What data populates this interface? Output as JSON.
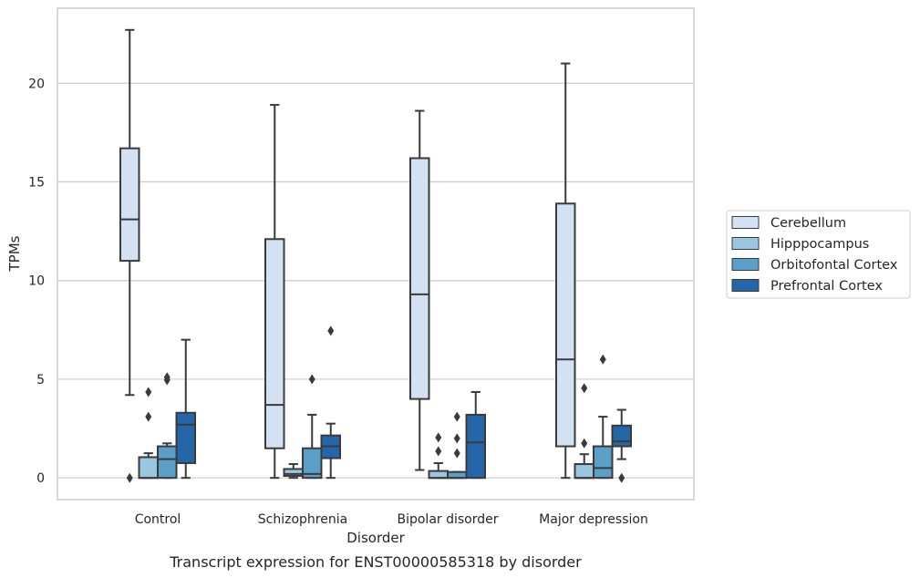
{
  "chart_data": {
    "type": "box",
    "caption": "Transcript expression for ENST00000585318 by disorder",
    "xlabel": "Disorder",
    "ylabel": "TPMs",
    "ylim": [
      -1.1,
      23.8
    ],
    "yticks": [
      0,
      5,
      10,
      15,
      20
    ],
    "grid": "horizontal",
    "legend_position": "right",
    "categories": [
      "Control",
      "Schizophrenia",
      "Bipolar disorder",
      "Major depression"
    ],
    "series": [
      {
        "name": "Cerebellum",
        "color": "#d2e2f2",
        "boxes": [
          {
            "whislo": 4.2,
            "q1": 11.0,
            "med": 13.1,
            "q3": 16.7,
            "whishi": 22.7,
            "fliers": [
              0.0
            ]
          },
          {
            "whislo": 0.0,
            "q1": 1.5,
            "med": 3.7,
            "q3": 12.1,
            "whishi": 18.9,
            "fliers": []
          },
          {
            "whislo": 0.4,
            "q1": 4.0,
            "med": 9.3,
            "q3": 16.2,
            "whishi": 18.6,
            "fliers": []
          },
          {
            "whislo": 0.0,
            "q1": 1.6,
            "med": 6.0,
            "q3": 13.9,
            "whishi": 21.0,
            "fliers": []
          }
        ]
      },
      {
        "name": "Hipppocampus",
        "color": "#9ac6e0",
        "boxes": [
          {
            "whislo": 0.0,
            "q1": 0.0,
            "med": 0.0,
            "q3": 1.05,
            "whishi": 1.25,
            "fliers": [
              3.1,
              4.35
            ]
          },
          {
            "whislo": 0.0,
            "q1": 0.1,
            "med": 0.2,
            "q3": 0.45,
            "whishi": 0.7,
            "fliers": []
          },
          {
            "whislo": 0.0,
            "q1": 0.0,
            "med": 0.0,
            "q3": 0.35,
            "whishi": 0.75,
            "fliers": [
              1.35,
              2.05
            ]
          },
          {
            "whislo": 0.0,
            "q1": 0.0,
            "med": 0.0,
            "q3": 0.7,
            "whishi": 1.2,
            "fliers": [
              1.75,
              4.55
            ]
          }
        ]
      },
      {
        "name": "Orbitofontal Cortex",
        "color": "#5b9fc9",
        "boxes": [
          {
            "whislo": 0.0,
            "q1": 0.0,
            "med": 0.95,
            "q3": 1.6,
            "whishi": 1.75,
            "fliers": [
              4.95,
              5.1
            ]
          },
          {
            "whislo": 0.0,
            "q1": 0.0,
            "med": 0.2,
            "q3": 1.5,
            "whishi": 3.2,
            "fliers": [
              5.0
            ]
          },
          {
            "whislo": 0.0,
            "q1": 0.0,
            "med": 0.0,
            "q3": 0.3,
            "whishi": 0.3,
            "fliers": [
              1.25,
              2.0,
              3.1
            ]
          },
          {
            "whislo": 0.0,
            "q1": 0.0,
            "med": 0.5,
            "q3": 1.6,
            "whishi": 3.1,
            "fliers": [
              6.0
            ]
          }
        ]
      },
      {
        "name": "Prefrontal Cortex",
        "color": "#2566a8",
        "boxes": [
          {
            "whislo": 0.0,
            "q1": 0.75,
            "med": 2.7,
            "q3": 3.3,
            "whishi": 7.0,
            "fliers": []
          },
          {
            "whislo": 0.0,
            "q1": 1.0,
            "med": 1.6,
            "q3": 2.15,
            "whishi": 2.75,
            "fliers": [
              7.45
            ]
          },
          {
            "whislo": 0.0,
            "q1": 0.0,
            "med": 1.8,
            "q3": 3.2,
            "whishi": 4.35,
            "fliers": []
          },
          {
            "whislo": 0.95,
            "q1": 1.6,
            "med": 1.85,
            "q3": 2.65,
            "whishi": 3.45,
            "fliers": [
              0.0
            ]
          }
        ]
      }
    ]
  }
}
